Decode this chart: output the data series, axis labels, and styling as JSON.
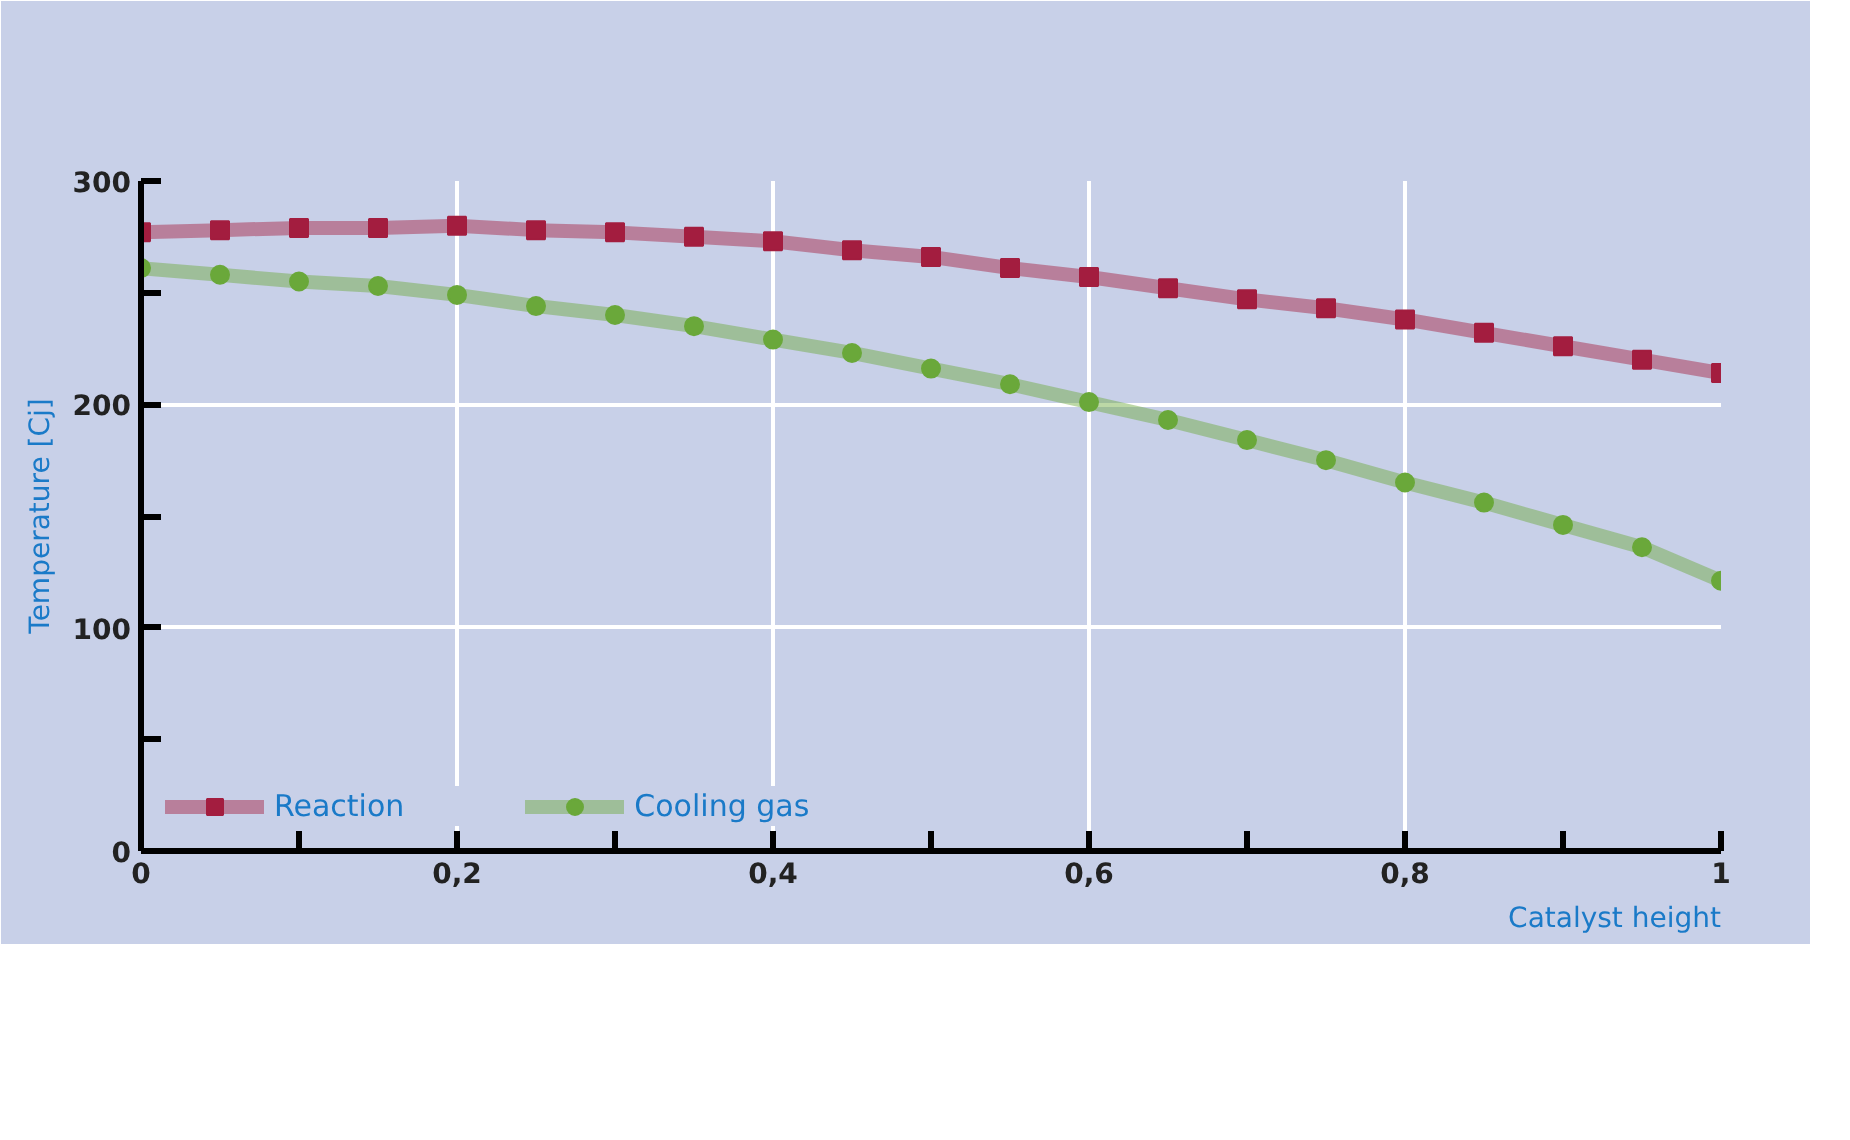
{
  "chart_data": {
    "type": "line",
    "xlabel": "Catalyst height",
    "ylabel": "Temperature [Cj]",
    "x": [
      0,
      0.05,
      0.1,
      0.15,
      0.2,
      0.25,
      0.3,
      0.35,
      0.4,
      0.45,
      0.5,
      0.55,
      0.6,
      0.65,
      0.7,
      0.75,
      0.8,
      0.85,
      0.9,
      0.95,
      1
    ],
    "series": [
      {
        "name": "Reaction",
        "color": "#a31d3f",
        "marker": "square",
        "values": [
          277,
          278,
          279,
          279,
          280,
          278,
          277,
          275,
          273,
          269,
          266,
          261,
          257,
          252,
          247,
          243,
          238,
          232,
          226,
          220,
          214
        ]
      },
      {
        "name": "Cooling gas",
        "color": "#6aa83a",
        "marker": "circle",
        "values": [
          261,
          258,
          255,
          253,
          249,
          244,
          240,
          235,
          229,
          223,
          216,
          209,
          201,
          193,
          184,
          175,
          165,
          156,
          146,
          136,
          121
        ]
      }
    ],
    "xlim": [
      0,
      1
    ],
    "ylim": [
      0,
      300
    ],
    "xticks": [
      0,
      {
        "value": 0.1,
        "label": null
      },
      {
        "value": 0.2,
        "label": "0,2"
      },
      {
        "value": 0.3,
        "label": null
      },
      {
        "value": 0.4,
        "label": "0,4"
      },
      {
        "value": 0.5,
        "label": null
      },
      {
        "value": 0.6,
        "label": "0,6"
      },
      {
        "value": 0.7,
        "label": null
      },
      {
        "value": 0.8,
        "label": "0,8"
      },
      {
        "value": 0.9,
        "label": null
      },
      1
    ],
    "yticks": [
      0,
      {
        "value": 50,
        "label": null
      },
      100,
      {
        "value": 150,
        "label": null
      },
      200,
      {
        "value": 250,
        "label": null
      },
      300
    ],
    "grid": true,
    "legend": "bottom",
    "line_style": "solid"
  }
}
